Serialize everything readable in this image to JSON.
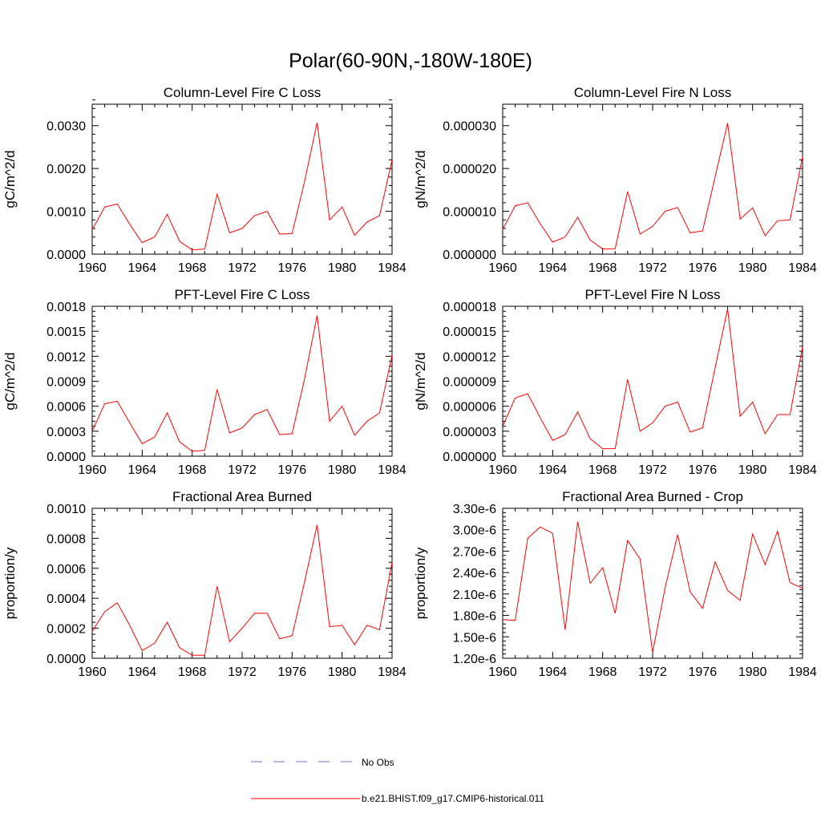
{
  "figure": {
    "title": "Polar(60-90N,-180W-180E)"
  },
  "legend": {
    "entries": [
      {
        "label": "No Obs",
        "color": "#6f6fd0",
        "style": "dashed"
      },
      {
        "label": "b.e21.BHIST.f09_g17.CMIP6-historical.011",
        "color": "#ff0000",
        "style": "solid"
      }
    ]
  },
  "chart_data": [
    {
      "type": "line",
      "title": "Column-Level Fire C Loss",
      "ylabel": "gC/m^2/d",
      "xlabel": "",
      "xlim": [
        1960,
        1984
      ],
      "ylim": [
        0,
        0.0035
      ],
      "xticks": [
        "1960",
        "1964",
        "1968",
        "1972",
        "1976",
        "1980",
        "1984"
      ],
      "yticks": [
        "0.0000",
        "0.0010",
        "0.0020",
        "0.0030"
      ],
      "ytick_values": [
        0,
        0.001,
        0.002,
        0.003
      ],
      "series": [
        {
          "color": "#ff0000",
          "x": [
            1960,
            1961,
            1962,
            1963,
            1964,
            1965,
            1966,
            1967,
            1968,
            1969,
            1970,
            1971,
            1972,
            1973,
            1974,
            1975,
            1976,
            1977,
            1978,
            1979,
            1980,
            1981,
            1982,
            1983,
            1984
          ],
          "values": [
            0.00057,
            0.0011,
            0.00117,
            0.0007,
            0.00027,
            0.0004,
            0.00093,
            0.0003,
            0.0001,
            0.00012,
            0.0014,
            0.0005,
            0.0006,
            0.0009,
            0.001,
            0.00047,
            0.00048,
            0.0017,
            0.00307,
            0.0008,
            0.0011,
            0.00044,
            0.00075,
            0.0009,
            0.0022
          ]
        }
      ]
    },
    {
      "type": "line",
      "title": "Column-Level Fire N Loss",
      "ylabel": "gN/m^2/d",
      "xlabel": "",
      "xlim": [
        1960,
        1984
      ],
      "ylim": [
        0,
        3.5e-05
      ],
      "xticks": [
        "1960",
        "1964",
        "1968",
        "1972",
        "1976",
        "1980",
        "1984"
      ],
      "yticks": [
        "0.000000",
        "0.000010",
        "0.000020",
        "0.000030"
      ],
      "ytick_values": [
        0,
        1e-05,
        2e-05,
        3e-05
      ],
      "series": [
        {
          "color": "#ff0000",
          "x": [
            1960,
            1961,
            1962,
            1963,
            1964,
            1965,
            1966,
            1967,
            1968,
            1969,
            1970,
            1971,
            1972,
            1973,
            1974,
            1975,
            1976,
            1977,
            1978,
            1979,
            1980,
            1981,
            1982,
            1983,
            1984
          ],
          "values": [
            5.8e-06,
            1.13e-05,
            1.2e-05,
            7.1e-06,
            2.8e-06,
            4e-06,
            8.6e-06,
            3.3e-06,
            1.2e-06,
            1.3e-06,
            1.46e-05,
            4.7e-06,
            6.5e-06,
            1e-05,
            1.09e-05,
            5e-06,
            5.4e-06,
            1.8e-05,
            3.06e-05,
            8.2e-06,
            1.08e-05,
            4.3e-06,
            7.8e-06,
            8e-06,
            2.28e-05
          ]
        }
      ]
    },
    {
      "type": "line",
      "title": "PFT-Level Fire C Loss",
      "ylabel": "gC/m^2/d",
      "xlabel": "",
      "xlim": [
        1960,
        1984
      ],
      "ylim": [
        0,
        0.0018
      ],
      "xticks": [
        "1960",
        "1964",
        "1968",
        "1972",
        "1976",
        "1980",
        "1984"
      ],
      "yticks": [
        "0.0000",
        "0.0003",
        "0.0006",
        "0.0009",
        "0.0012",
        "0.0015",
        "0.0018"
      ],
      "ytick_values": [
        0,
        0.0003,
        0.0006,
        0.0009,
        0.0012,
        0.0015,
        0.0018
      ],
      "series": [
        {
          "color": "#ff0000",
          "x": [
            1960,
            1961,
            1962,
            1963,
            1964,
            1965,
            1966,
            1967,
            1968,
            1969,
            1970,
            1971,
            1972,
            1973,
            1974,
            1975,
            1976,
            1977,
            1978,
            1979,
            1980,
            1981,
            1982,
            1983,
            1984
          ],
          "values": [
            0.0003,
            0.00063,
            0.00066,
            0.0004,
            0.00015,
            0.00023,
            0.00052,
            0.00017,
            6e-05,
            7e-05,
            0.0008,
            0.00028,
            0.00034,
            0.0005,
            0.00056,
            0.00026,
            0.00027,
            0.00093,
            0.00169,
            0.00042,
            0.0006,
            0.00025,
            0.00042,
            0.00052,
            0.00121
          ]
        }
      ]
    },
    {
      "type": "line",
      "title": "PFT-Level Fire N Loss",
      "ylabel": "gN/m^2/d",
      "xlabel": "",
      "xlim": [
        1960,
        1984
      ],
      "ylim": [
        0,
        1.8e-05
      ],
      "xticks": [
        "1960",
        "1964",
        "1968",
        "1972",
        "1976",
        "1980",
        "1984"
      ],
      "yticks": [
        "0.000000",
        "0.000003",
        "0.000006",
        "0.000009",
        "0.000012",
        "0.000015",
        "0.000018"
      ],
      "ytick_values": [
        0,
        3e-06,
        6e-06,
        9e-06,
        1.2e-05,
        1.5e-05,
        1.8e-05
      ],
      "series": [
        {
          "color": "#ff0000",
          "x": [
            1960,
            1961,
            1962,
            1963,
            1964,
            1965,
            1966,
            1967,
            1968,
            1969,
            1970,
            1971,
            1972,
            1973,
            1974,
            1975,
            1976,
            1977,
            1978,
            1979,
            1980,
            1981,
            1982,
            1983,
            1984
          ],
          "values": [
            3.6e-06,
            7e-06,
            7.5e-06,
            4.6e-06,
            1.9e-06,
            2.6e-06,
            5.3e-06,
            2.1e-06,
            9e-07,
            9e-07,
            9.2e-06,
            3e-06,
            4e-06,
            6e-06,
            6.5e-06,
            2.9e-06,
            3.4e-06,
            1.06e-05,
            1.77e-05,
            4.8e-06,
            6.5e-06,
            2.7e-06,
            5e-06,
            5e-06,
            1.31e-05
          ]
        }
      ]
    },
    {
      "type": "line",
      "title": "Fractional Area Burned",
      "ylabel": "proportion/y",
      "xlabel": "",
      "xlim": [
        1960,
        1984
      ],
      "ylim": [
        0,
        0.001
      ],
      "xticks": [
        "1960",
        "1964",
        "1968",
        "1972",
        "1976",
        "1980",
        "1984"
      ],
      "yticks": [
        "0.0000",
        "0.0002",
        "0.0004",
        "0.0006",
        "0.0008",
        "0.0010"
      ],
      "ytick_values": [
        0,
        0.0002,
        0.0004,
        0.0006,
        0.0008,
        0.001
      ],
      "series": [
        {
          "color": "#ff0000",
          "x": [
            1960,
            1961,
            1962,
            1963,
            1964,
            1965,
            1966,
            1967,
            1968,
            1969,
            1970,
            1971,
            1972,
            1973,
            1974,
            1975,
            1976,
            1977,
            1978,
            1979,
            1980,
            1981,
            1982,
            1983,
            1984
          ],
          "values": [
            0.00018,
            0.00031,
            0.00037,
            0.00022,
            5e-05,
            0.0001,
            0.00024,
            7e-05,
            2e-05,
            2e-05,
            0.00048,
            0.00011,
            0.0002,
            0.0003,
            0.0003,
            0.00013,
            0.00015,
            0.00051,
            0.00089,
            0.00021,
            0.00022,
            9e-05,
            0.00022,
            0.00019,
            0.00064
          ]
        }
      ]
    },
    {
      "type": "line",
      "title": "Fractional Area Burned - Crop",
      "ylabel": "proportion/y",
      "xlabel": "",
      "xlim": [
        1960,
        1984
      ],
      "ylim": [
        1.2e-06,
        3.3e-06
      ],
      "xticks": [
        "1960",
        "1964",
        "1968",
        "1972",
        "1976",
        "1980",
        "1984"
      ],
      "yticks": [
        "1.20e-6",
        "1.50e-6",
        "1.80e-6",
        "2.10e-6",
        "2.40e-6",
        "2.70e-6",
        "3.00e-6",
        "3.30e-6"
      ],
      "ytick_values": [
        1.2e-06,
        1.5e-06,
        1.8e-06,
        2.1e-06,
        2.4e-06,
        2.7e-06,
        3e-06,
        3.3e-06
      ],
      "series": [
        {
          "color": "#ff0000",
          "x": [
            1960,
            1961,
            1962,
            1963,
            1964,
            1965,
            1966,
            1967,
            1968,
            1969,
            1970,
            1971,
            1972,
            1973,
            1974,
            1975,
            1976,
            1977,
            1978,
            1979,
            1980,
            1981,
            1982,
            1983,
            1984
          ],
          "values": [
            1.74e-06,
            1.73e-06,
            2.88e-06,
            3.04e-06,
            2.95e-06,
            1.6e-06,
            3.11e-06,
            2.25e-06,
            2.47e-06,
            1.83e-06,
            2.85e-06,
            2.59e-06,
            1.28e-06,
            2.19e-06,
            2.93e-06,
            2.13e-06,
            1.9e-06,
            2.55e-06,
            2.15e-06,
            2.01e-06,
            2.94e-06,
            2.51e-06,
            2.98e-06,
            2.26e-06,
            2.18e-06
          ]
        }
      ]
    }
  ]
}
